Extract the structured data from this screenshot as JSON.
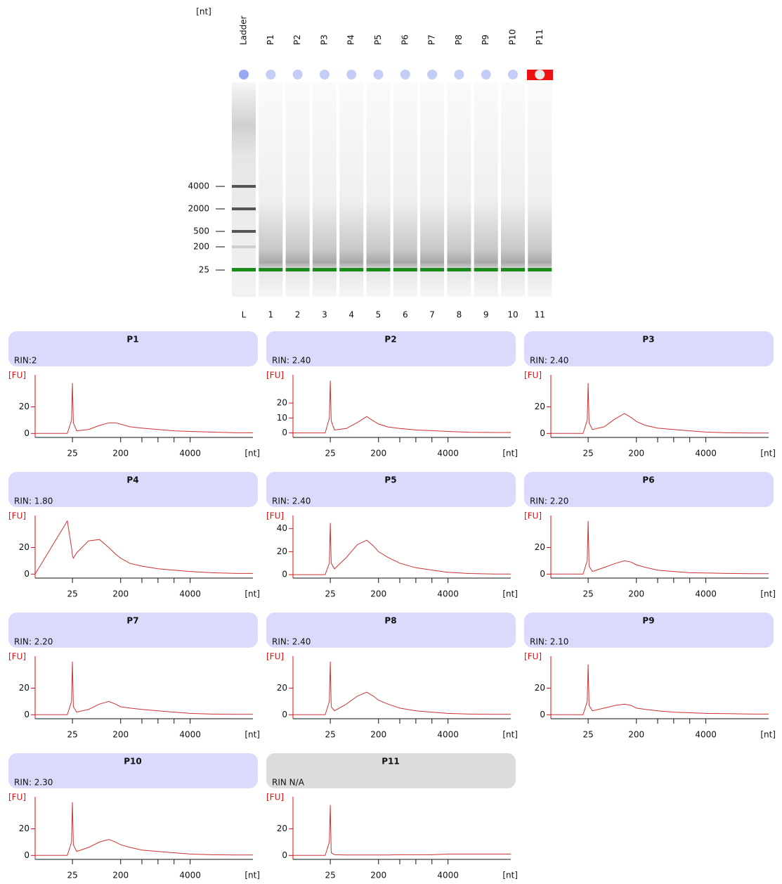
{
  "gel": {
    "unit": "[nt]",
    "lanes": [
      "Ladder",
      "P1",
      "P2",
      "P3",
      "P4",
      "P5",
      "P6",
      "P7",
      "P8",
      "P9",
      "P10",
      "P11"
    ],
    "lane_numbers": [
      "L",
      "1",
      "2",
      "3",
      "4",
      "5",
      "6",
      "7",
      "8",
      "9",
      "10",
      "11"
    ],
    "ladder_sizes": [
      4000,
      2000,
      500,
      200,
      25
    ]
  },
  "chart_data": [
    {
      "type": "line",
      "title": "P1",
      "subtitle": "RIN:2",
      "y_label": "[FU]",
      "x_label": "[nt]",
      "log_x": true,
      "panel_color": "#dadafc",
      "xlim": [
        5,
        60000
      ],
      "ylim": [
        -3,
        42
      ],
      "yticks": [
        0,
        20
      ],
      "xticks": [
        25,
        200,
        {
          "value": 500,
          "label": null
        },
        {
          "value": 1000,
          "label": null
        },
        {
          "value": 2000,
          "label": null
        },
        4000
      ],
      "x": [
        5,
        20,
        24,
        25,
        26,
        30,
        50,
        80,
        120,
        160,
        200,
        300,
        500,
        1000,
        2000,
        4000,
        10000,
        30000,
        60000
      ],
      "series": [
        {
          "color": "#cc3333",
          "values": [
            0,
            0,
            10,
            38,
            8,
            2,
            3,
            6,
            8,
            8,
            7,
            5,
            4,
            3,
            2,
            1.5,
            1,
            0.5,
            0.5
          ]
        }
      ]
    },
    {
      "type": "line",
      "title": "P2",
      "subtitle": "RIN: 2.40",
      "y_label": "[FU]",
      "x_label": "[nt]",
      "log_x": true,
      "panel_color": "#dadafc",
      "xlim": [
        5,
        60000
      ],
      "ylim": [
        -3,
        37
      ],
      "yticks": [
        0,
        10,
        20
      ],
      "xticks": [
        25,
        200,
        {
          "value": 500,
          "label": null
        },
        {
          "value": 1000,
          "label": null
        },
        {
          "value": 2000,
          "label": null
        },
        4000
      ],
      "x": [
        5,
        20,
        24,
        25,
        26,
        30,
        50,
        80,
        120,
        160,
        200,
        300,
        500,
        1000,
        2000,
        4000,
        10000,
        30000,
        60000
      ],
      "series": [
        {
          "color": "#cc3333",
          "values": [
            0,
            0,
            10,
            35,
            8,
            2,
            3,
            7,
            11,
            8,
            6,
            4,
            3,
            2,
            1.5,
            1,
            0.5,
            0.3,
            0.3
          ]
        }
      ]
    },
    {
      "type": "line",
      "title": "P3",
      "subtitle": "RIN: 2.40",
      "y_label": "[FU]",
      "x_label": "[nt]",
      "log_x": true,
      "panel_color": "#dadafc",
      "xlim": [
        5,
        60000
      ],
      "ylim": [
        -3,
        42
      ],
      "yticks": [
        0,
        20
      ],
      "xticks": [
        25,
        200,
        {
          "value": 500,
          "label": null
        },
        {
          "value": 1000,
          "label": null
        },
        {
          "value": 2000,
          "label": null
        },
        4000
      ],
      "x": [
        5,
        20,
        24,
        25,
        26,
        30,
        50,
        80,
        120,
        160,
        200,
        300,
        500,
        1000,
        2000,
        4000,
        10000,
        30000,
        60000
      ],
      "series": [
        {
          "color": "#cc3333",
          "values": [
            0,
            0,
            10,
            38,
            8,
            3,
            5,
            11,
            15,
            12,
            9,
            6,
            4,
            3,
            2,
            1,
            0.5,
            0.3,
            0.3
          ]
        }
      ]
    },
    {
      "type": "line",
      "title": "P4",
      "subtitle": "RIN: 1.80",
      "y_label": "[FU]",
      "x_label": "[nt]",
      "log_x": true,
      "panel_color": "#dadafc",
      "xlim": [
        5,
        60000
      ],
      "ylim": [
        -3,
        42
      ],
      "yticks": [
        0,
        20
      ],
      "xticks": [
        25,
        200,
        {
          "value": 500,
          "label": null
        },
        {
          "value": 1000,
          "label": null
        },
        {
          "value": 2000,
          "label": null
        },
        4000
      ],
      "x": [
        5,
        20,
        24,
        25,
        26,
        30,
        50,
        80,
        120,
        160,
        200,
        300,
        500,
        1000,
        2000,
        4000,
        10000,
        30000,
        60000
      ],
      "series": [
        {
          "color": "#cc3333",
          "values": [
            0,
            40,
            20,
            14,
            12,
            16,
            25,
            26,
            20,
            15,
            12,
            8,
            6,
            4,
            3,
            2,
            1,
            0.5,
            0.5
          ]
        }
      ]
    },
    {
      "type": "line",
      "title": "P5",
      "subtitle": "RIN: 2.40",
      "y_label": "[FU]",
      "x_label": "[nt]",
      "log_x": true,
      "panel_color": "#dadafc",
      "xlim": [
        5,
        60000
      ],
      "ylim": [
        -3,
        49
      ],
      "yticks": [
        0,
        20,
        40
      ],
      "xticks": [
        25,
        200,
        {
          "value": 500,
          "label": null
        },
        {
          "value": 1000,
          "label": null
        },
        {
          "value": 2000,
          "label": null
        },
        4000
      ],
      "x": [
        5,
        20,
        24,
        25,
        26,
        30,
        50,
        80,
        120,
        160,
        200,
        300,
        500,
        1000,
        2000,
        4000,
        10000,
        30000,
        60000
      ],
      "series": [
        {
          "color": "#cc3333",
          "values": [
            0,
            0,
            10,
            45,
            10,
            5,
            15,
            26,
            30,
            25,
            20,
            15,
            10,
            6,
            4,
            2,
            1,
            0.5,
            0.5
          ]
        }
      ]
    },
    {
      "type": "line",
      "title": "P6",
      "subtitle": "RIN: 2.20",
      "y_label": "[FU]",
      "x_label": "[nt]",
      "log_x": true,
      "panel_color": "#dadafc",
      "xlim": [
        5,
        60000
      ],
      "ylim": [
        -3,
        42
      ],
      "yticks": [
        0,
        20
      ],
      "xticks": [
        25,
        200,
        {
          "value": 500,
          "label": null
        },
        {
          "value": 1000,
          "label": null
        },
        {
          "value": 2000,
          "label": null
        },
        4000
      ],
      "x": [
        5,
        20,
        24,
        25,
        26,
        30,
        50,
        80,
        120,
        160,
        200,
        300,
        500,
        1000,
        2000,
        4000,
        10000,
        30000,
        60000
      ],
      "series": [
        {
          "color": "#cc3333",
          "values": [
            0,
            0,
            10,
            40,
            6,
            2,
            5,
            8,
            10,
            9,
            7,
            5,
            3,
            2,
            1,
            0.8,
            0.5,
            0.3,
            0.3
          ]
        }
      ]
    },
    {
      "type": "line",
      "title": "P7",
      "subtitle": "RIN: 2.20",
      "y_label": "[FU]",
      "x_label": "[nt]",
      "log_x": true,
      "panel_color": "#dadafc",
      "xlim": [
        5,
        60000
      ],
      "ylim": [
        -3,
        42
      ],
      "yticks": [
        0,
        20
      ],
      "xticks": [
        25,
        200,
        {
          "value": 500,
          "label": null
        },
        {
          "value": 1000,
          "label": null
        },
        {
          "value": 2000,
          "label": null
        },
        4000
      ],
      "x": [
        5,
        20,
        24,
        25,
        26,
        30,
        50,
        80,
        120,
        160,
        200,
        300,
        500,
        1000,
        2000,
        4000,
        10000,
        30000,
        60000
      ],
      "series": [
        {
          "color": "#cc3333",
          "values": [
            0,
            0,
            10,
            40,
            6,
            2,
            4,
            8,
            10,
            8,
            6,
            5,
            4,
            3,
            2,
            1,
            0.5,
            0.3,
            0.3
          ]
        }
      ]
    },
    {
      "type": "line",
      "title": "P8",
      "subtitle": "RIN: 2.40",
      "y_label": "[FU]",
      "x_label": "[nt]",
      "log_x": true,
      "panel_color": "#dadafc",
      "xlim": [
        5,
        60000
      ],
      "ylim": [
        -3,
        42
      ],
      "yticks": [
        0,
        20
      ],
      "xticks": [
        25,
        200,
        {
          "value": 500,
          "label": null
        },
        {
          "value": 1000,
          "label": null
        },
        {
          "value": 2000,
          "label": null
        },
        4000
      ],
      "x": [
        5,
        20,
        24,
        25,
        26,
        30,
        50,
        80,
        120,
        160,
        200,
        300,
        500,
        1000,
        2000,
        4000,
        10000,
        30000,
        60000
      ],
      "series": [
        {
          "color": "#cc3333",
          "values": [
            0,
            0,
            10,
            40,
            6,
            3,
            8,
            14,
            17,
            14,
            11,
            8,
            5,
            3,
            2,
            1,
            0.5,
            0.3,
            0.3
          ]
        }
      ]
    },
    {
      "type": "line",
      "title": "P9",
      "subtitle": "RIN: 2.10",
      "y_label": "[FU]",
      "x_label": "[nt]",
      "log_x": true,
      "panel_color": "#dadafc",
      "xlim": [
        5,
        60000
      ],
      "ylim": [
        -3,
        42
      ],
      "yticks": [
        0,
        20
      ],
      "xticks": [
        25,
        200,
        {
          "value": 500,
          "label": null
        },
        {
          "value": 1000,
          "label": null
        },
        {
          "value": 2000,
          "label": null
        },
        4000
      ],
      "x": [
        5,
        20,
        24,
        25,
        26,
        30,
        50,
        80,
        120,
        160,
        200,
        300,
        500,
        1000,
        2000,
        4000,
        10000,
        30000,
        60000
      ],
      "series": [
        {
          "color": "#cc3333",
          "values": [
            0,
            0,
            10,
            38,
            7,
            3,
            5,
            7,
            8,
            7,
            5,
            4,
            3,
            2,
            1.5,
            1,
            0.8,
            0.5,
            0.5
          ]
        }
      ]
    },
    {
      "type": "line",
      "title": "P10",
      "subtitle": "RIN: 2.30",
      "y_label": "[FU]",
      "x_label": "[nt]",
      "log_x": true,
      "panel_color": "#dadafc",
      "xlim": [
        5,
        60000
      ],
      "ylim": [
        -3,
        42
      ],
      "yticks": [
        0,
        20
      ],
      "xticks": [
        25,
        200,
        {
          "value": 500,
          "label": null
        },
        {
          "value": 1000,
          "label": null
        },
        {
          "value": 2000,
          "label": null
        },
        4000
      ],
      "x": [
        5,
        20,
        24,
        25,
        26,
        30,
        50,
        80,
        120,
        160,
        200,
        300,
        500,
        1000,
        2000,
        4000,
        10000,
        30000,
        60000
      ],
      "series": [
        {
          "color": "#cc3333",
          "values": [
            0,
            0,
            10,
            40,
            8,
            3,
            6,
            10,
            12,
            10,
            8,
            6,
            4,
            3,
            2,
            1,
            0.5,
            0.3,
            0.3
          ]
        }
      ]
    },
    {
      "type": "line",
      "title": "P11",
      "subtitle": "RIN N/A",
      "y_label": "[FU]",
      "x_label": "[nt]",
      "log_x": true,
      "panel_color": "#dcdcdc",
      "xlim": [
        5,
        60000
      ],
      "ylim": [
        -3,
        42
      ],
      "yticks": [
        0,
        20
      ],
      "xticks": [
        25,
        200,
        {
          "value": 500,
          "label": null
        },
        {
          "value": 1000,
          "label": null
        },
        {
          "value": 2000,
          "label": null
        },
        4000
      ],
      "x": [
        5,
        20,
        24,
        25,
        26,
        30,
        50,
        80,
        120,
        160,
        200,
        300,
        500,
        1000,
        2000,
        4000,
        10000,
        30000,
        60000
      ],
      "series": [
        {
          "color": "#cc3333",
          "values": [
            0,
            0,
            10,
            38,
            2,
            0.5,
            0.3,
            0.3,
            0.3,
            0.3,
            0.3,
            0.3,
            0.5,
            0.5,
            0.5,
            1,
            1,
            1,
            1
          ]
        }
      ]
    }
  ]
}
